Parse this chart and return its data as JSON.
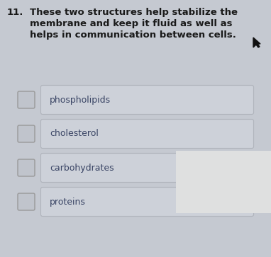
{
  "question_number": "11.",
  "question_text": "These two structures help stabilize the\nmembrane and keep it fluid as well as\nhelps in communication between cells.",
  "options": [
    "phospholipids",
    "cholesterol",
    "carbohydrates",
    "proteins"
  ],
  "bg_color": "#c5c9d1",
  "box_bg_color": "#cdd1d9",
  "box_border_color": "#b0b4bc",
  "checkbox_bg_color": "#c0c4cc",
  "checkbox_border_color": "#999999",
  "text_color": "#1a1a1a",
  "option_text_color": "#3a4565",
  "question_fontsize": 9.5,
  "option_fontsize": 9.0,
  "number_fontsize": 9.5,
  "corner_color": "#dfe0e0",
  "fig_width": 3.82,
  "fig_height": 3.63,
  "dpi": 100
}
